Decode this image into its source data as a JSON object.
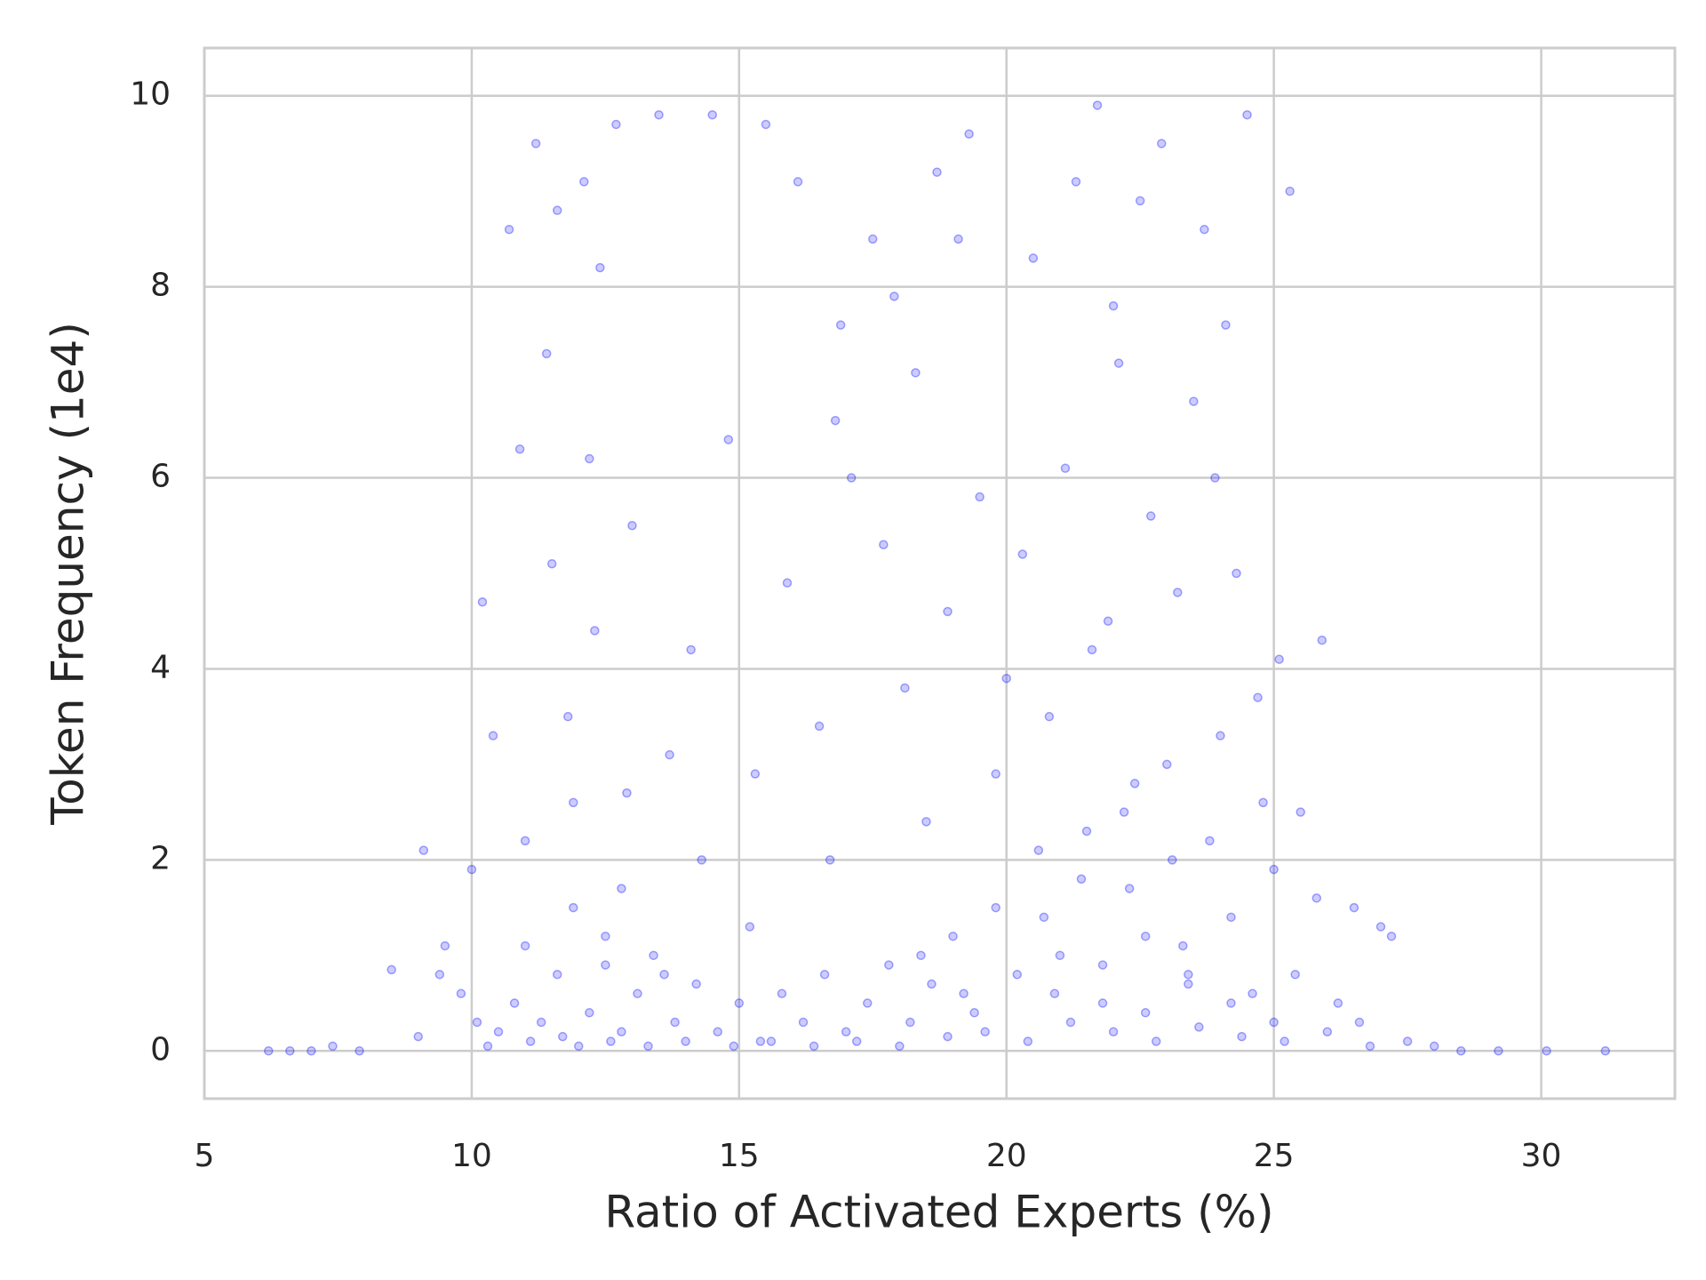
{
  "chart_data": {
    "type": "scatter",
    "xlabel": "Ratio of Activated Experts (%)",
    "ylabel": "Token Frequency (1e4)",
    "color": "#0000ff",
    "grid": true,
    "xlim": [
      5,
      32.5
    ],
    "ylim": [
      -0.5,
      10.5
    ],
    "xticks": [
      5,
      10,
      15,
      20,
      25,
      30
    ],
    "yticks": [
      0,
      2,
      4,
      6,
      8,
      10
    ],
    "x": [
      6.2,
      6.6,
      7.0,
      7.4,
      7.9,
      8.5,
      9.0,
      9.4,
      9.8,
      10.1,
      10.5,
      10.8,
      11.0,
      11.3,
      11.6,
      11.9,
      12.2,
      12.5,
      12.8,
      13.1,
      13.4,
      13.8,
      14.2,
      14.6,
      15.0,
      15.4,
      15.8,
      16.2,
      16.6,
      17.0,
      17.4,
      17.8,
      18.2,
      18.6,
      19.0,
      19.4,
      19.8,
      20.2,
      20.6,
      21.0,
      21.4,
      21.8,
      22.2,
      22.6,
      23.0,
      23.4,
      23.8,
      24.2,
      24.6,
      25.0,
      25.4,
      25.8,
      26.2,
      26.6,
      27.0,
      27.5,
      28.0,
      28.5,
      29.2,
      30.1,
      10.3,
      11.1,
      11.7,
      12.0,
      12.6,
      13.3,
      14.0,
      14.9,
      15.6,
      16.4,
      17.2,
      18.0,
      18.9,
      19.6,
      20.4,
      21.2,
      22.0,
      22.8,
      23.6,
      24.4,
      25.2,
      26.0,
      26.8,
      31.2,
      20.8,
      21.6,
      22.4,
      23.2,
      24.0,
      24.8,
      20.3,
      21.1,
      21.9,
      22.7,
      23.5,
      24.3,
      25.1,
      20.0,
      22.1,
      23.9,
      20.5,
      21.3,
      22.0,
      22.9,
      23.7,
      24.5,
      25.3,
      21.7,
      22.5,
      24.1,
      15.3,
      15.9,
      16.5,
      17.1,
      17.7,
      18.3,
      18.9,
      19.5,
      16.8,
      18.1,
      14.5,
      15.5,
      16.1,
      17.5,
      18.7,
      19.3,
      16.9,
      14.8,
      17.9,
      19.1,
      10.7,
      11.2,
      11.6,
      12.1,
      12.7,
      13.5,
      11.4,
      12.4,
      13.0,
      14.1,
      10.2,
      10.9,
      11.5,
      11.8,
      12.3,
      12.9,
      13.7,
      11.0,
      12.2,
      14.3,
      9.1,
      9.5,
      10.0,
      10.4,
      11.9,
      12.8,
      15.2,
      16.7,
      18.5,
      19.8,
      20.7,
      21.5,
      22.3,
      23.1,
      23.3,
      24.7,
      25.5,
      25.9,
      26.5,
      27.2,
      20.9,
      21.8,
      22.6,
      23.4,
      24.2,
      25.0,
      12.5,
      13.6,
      19.2,
      18.4
    ],
    "values": [
      0,
      0,
      0,
      0.05,
      0,
      0.85,
      0.15,
      0.8,
      0.6,
      0.3,
      0.2,
      0.5,
      1.1,
      0.3,
      0.8,
      1.5,
      0.4,
      0.9,
      0.2,
      0.6,
      1.0,
      0.3,
      0.7,
      0.2,
      0.5,
      0.1,
      0.6,
      0.3,
      0.8,
      0.2,
      0.5,
      0.9,
      0.3,
      0.7,
      1.2,
      0.4,
      1.5,
      0.8,
      2.1,
      1.0,
      1.8,
      0.5,
      2.5,
      1.2,
      3.0,
      0.7,
      2.2,
      1.4,
      0.6,
      1.9,
      0.8,
      1.6,
      0.5,
      0.3,
      1.3,
      0.1,
      0.05,
      0,
      0,
      0,
      0.05,
      0.1,
      0.15,
      0.05,
      0.1,
      0.05,
      0.1,
      0.05,
      0.1,
      0.05,
      0.1,
      0.05,
      0.15,
      0.2,
      0.1,
      0.3,
      0.2,
      0.1,
      0.25,
      0.15,
      0.1,
      0.2,
      0.05,
      0,
      3.5,
      4.2,
      2.8,
      4.8,
      3.3,
      2.6,
      5.2,
      6.1,
      4.5,
      5.6,
      6.8,
      5.0,
      4.1,
      3.9,
      7.2,
      6.0,
      8.3,
      9.1,
      7.8,
      9.5,
      8.6,
      9.8,
      9.0,
      9.9,
      8.9,
      7.6,
      2.9,
      4.9,
      3.4,
      6.0,
      5.3,
      7.1,
      4.6,
      5.8,
      6.6,
      3.8,
      9.8,
      9.7,
      9.1,
      8.5,
      9.2,
      9.6,
      7.6,
      6.4,
      7.9,
      8.5,
      8.6,
      9.5,
      8.8,
      9.1,
      9.7,
      9.8,
      7.3,
      8.2,
      5.5,
      4.2,
      4.7,
      6.3,
      5.1,
      3.5,
      4.4,
      2.7,
      3.1,
      2.2,
      6.2,
      2.0,
      2.1,
      1.1,
      1.9,
      3.3,
      2.6,
      1.7,
      1.3,
      2.0,
      2.4,
      2.9,
      1.4,
      2.3,
      1.7,
      2.0,
      1.1,
      3.7,
      2.5,
      4.3,
      1.5,
      1.2,
      0.6,
      0.9,
      0.4,
      0.8,
      0.5,
      0.3,
      1.2,
      0.8,
      0.6,
      1.0
    ]
  }
}
